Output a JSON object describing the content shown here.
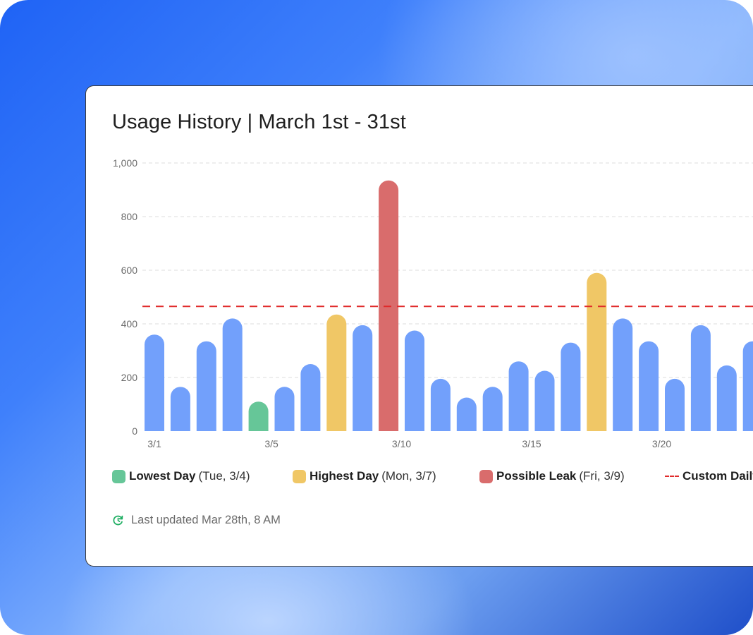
{
  "card": {
    "title": "Usage History | March 1st - 31st"
  },
  "chart_data": {
    "type": "bar",
    "x_tick_labels": [
      "3/1",
      "3/5",
      "3/10",
      "3/15",
      "3/20"
    ],
    "y_ticks": [
      "0",
      "200",
      "400",
      "600",
      "800",
      "1,000"
    ],
    "ylim": [
      0,
      1000
    ],
    "grid": true,
    "values": [
      360,
      165,
      335,
      420,
      110,
      165,
      250,
      435,
      395,
      935,
      375,
      195,
      125,
      165,
      260,
      225,
      330,
      590,
      420,
      335,
      195,
      395,
      245,
      335
    ],
    "highlights": {
      "lowest": 4,
      "highest": [
        7,
        17
      ],
      "leak": 9
    },
    "threshold": 465,
    "colors": {
      "normal": "#72a0fb",
      "lowest": "#66c698",
      "highest": "#f0c766",
      "leak": "#d96c6c",
      "threshold": "#e02b2b",
      "grid": "#dcdcdc"
    }
  },
  "legend": {
    "lowest": {
      "label": "Lowest Day",
      "detail": "(Tue, 3/4)"
    },
    "highest": {
      "label": "Highest Day",
      "detail": "(Mon, 3/7)"
    },
    "leak": {
      "label": "Possible Leak",
      "detail": "(Fri, 3/9)"
    },
    "custom": {
      "label": "Custom Daily"
    }
  },
  "footer": {
    "updated_text": "Last updated Mar 28th, 8 AM",
    "icon": "clock-refresh-icon",
    "icon_color": "#1fae62"
  }
}
